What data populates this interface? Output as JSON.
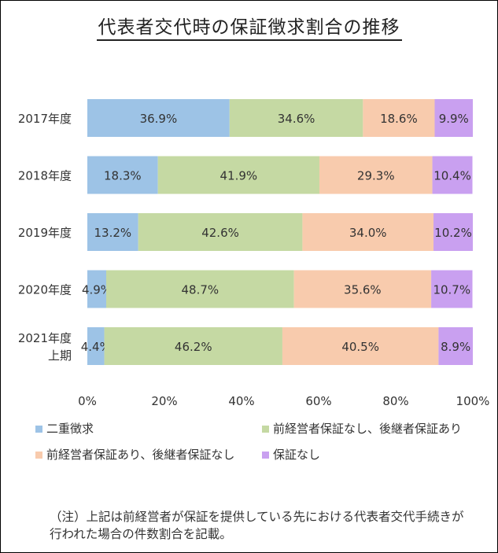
{
  "chart_data": {
    "type": "bar",
    "orientation": "horizontal",
    "stacked": true,
    "title": "代表者交代時の保証徴求割合の推移",
    "categories": [
      "2017年度",
      "2018年度",
      "2019年度",
      "2020年度",
      "2021年度\n上期"
    ],
    "series": [
      {
        "name": "二重徴求",
        "color": "#9DC3E6",
        "values": [
          36.9,
          18.3,
          13.2,
          4.9,
          4.4
        ]
      },
      {
        "name": "前経営者保証なし、後継者保証あり",
        "color": "#C5D9A3",
        "values": [
          34.6,
          41.9,
          42.6,
          48.7,
          46.2
        ]
      },
      {
        "name": "前経営者保証あり、後継者保証なし",
        "color": "#F8CBAD",
        "values": [
          18.6,
          29.3,
          34.0,
          35.6,
          40.5
        ]
      },
      {
        "name": "保証なし",
        "color": "#C9A0F0",
        "values": [
          9.9,
          10.4,
          10.2,
          10.7,
          8.9
        ]
      }
    ],
    "data_labels": [
      [
        "36.9%",
        "34.6%",
        "18.6%",
        "9.9%"
      ],
      [
        "18.3%",
        "41.9%",
        "29.3%",
        "10.4%"
      ],
      [
        "13.2%",
        "42.6%",
        "34.0%",
        "10.2%"
      ],
      [
        "4.9%",
        "48.7%",
        "35.6%",
        "10.7%"
      ],
      [
        "4.4%",
        "46.2%",
        "40.5%",
        "8.9%"
      ]
    ],
    "x_ticks": [
      "0%",
      "20%",
      "40%",
      "60%",
      "80%",
      "100%"
    ],
    "xlim": [
      0,
      100
    ],
    "grid": false,
    "legend_position": "bottom"
  },
  "note": "（注）上記は前経営者が保証を提供している先における代表者交代手続きが行われた場合の件数割合を記載。"
}
